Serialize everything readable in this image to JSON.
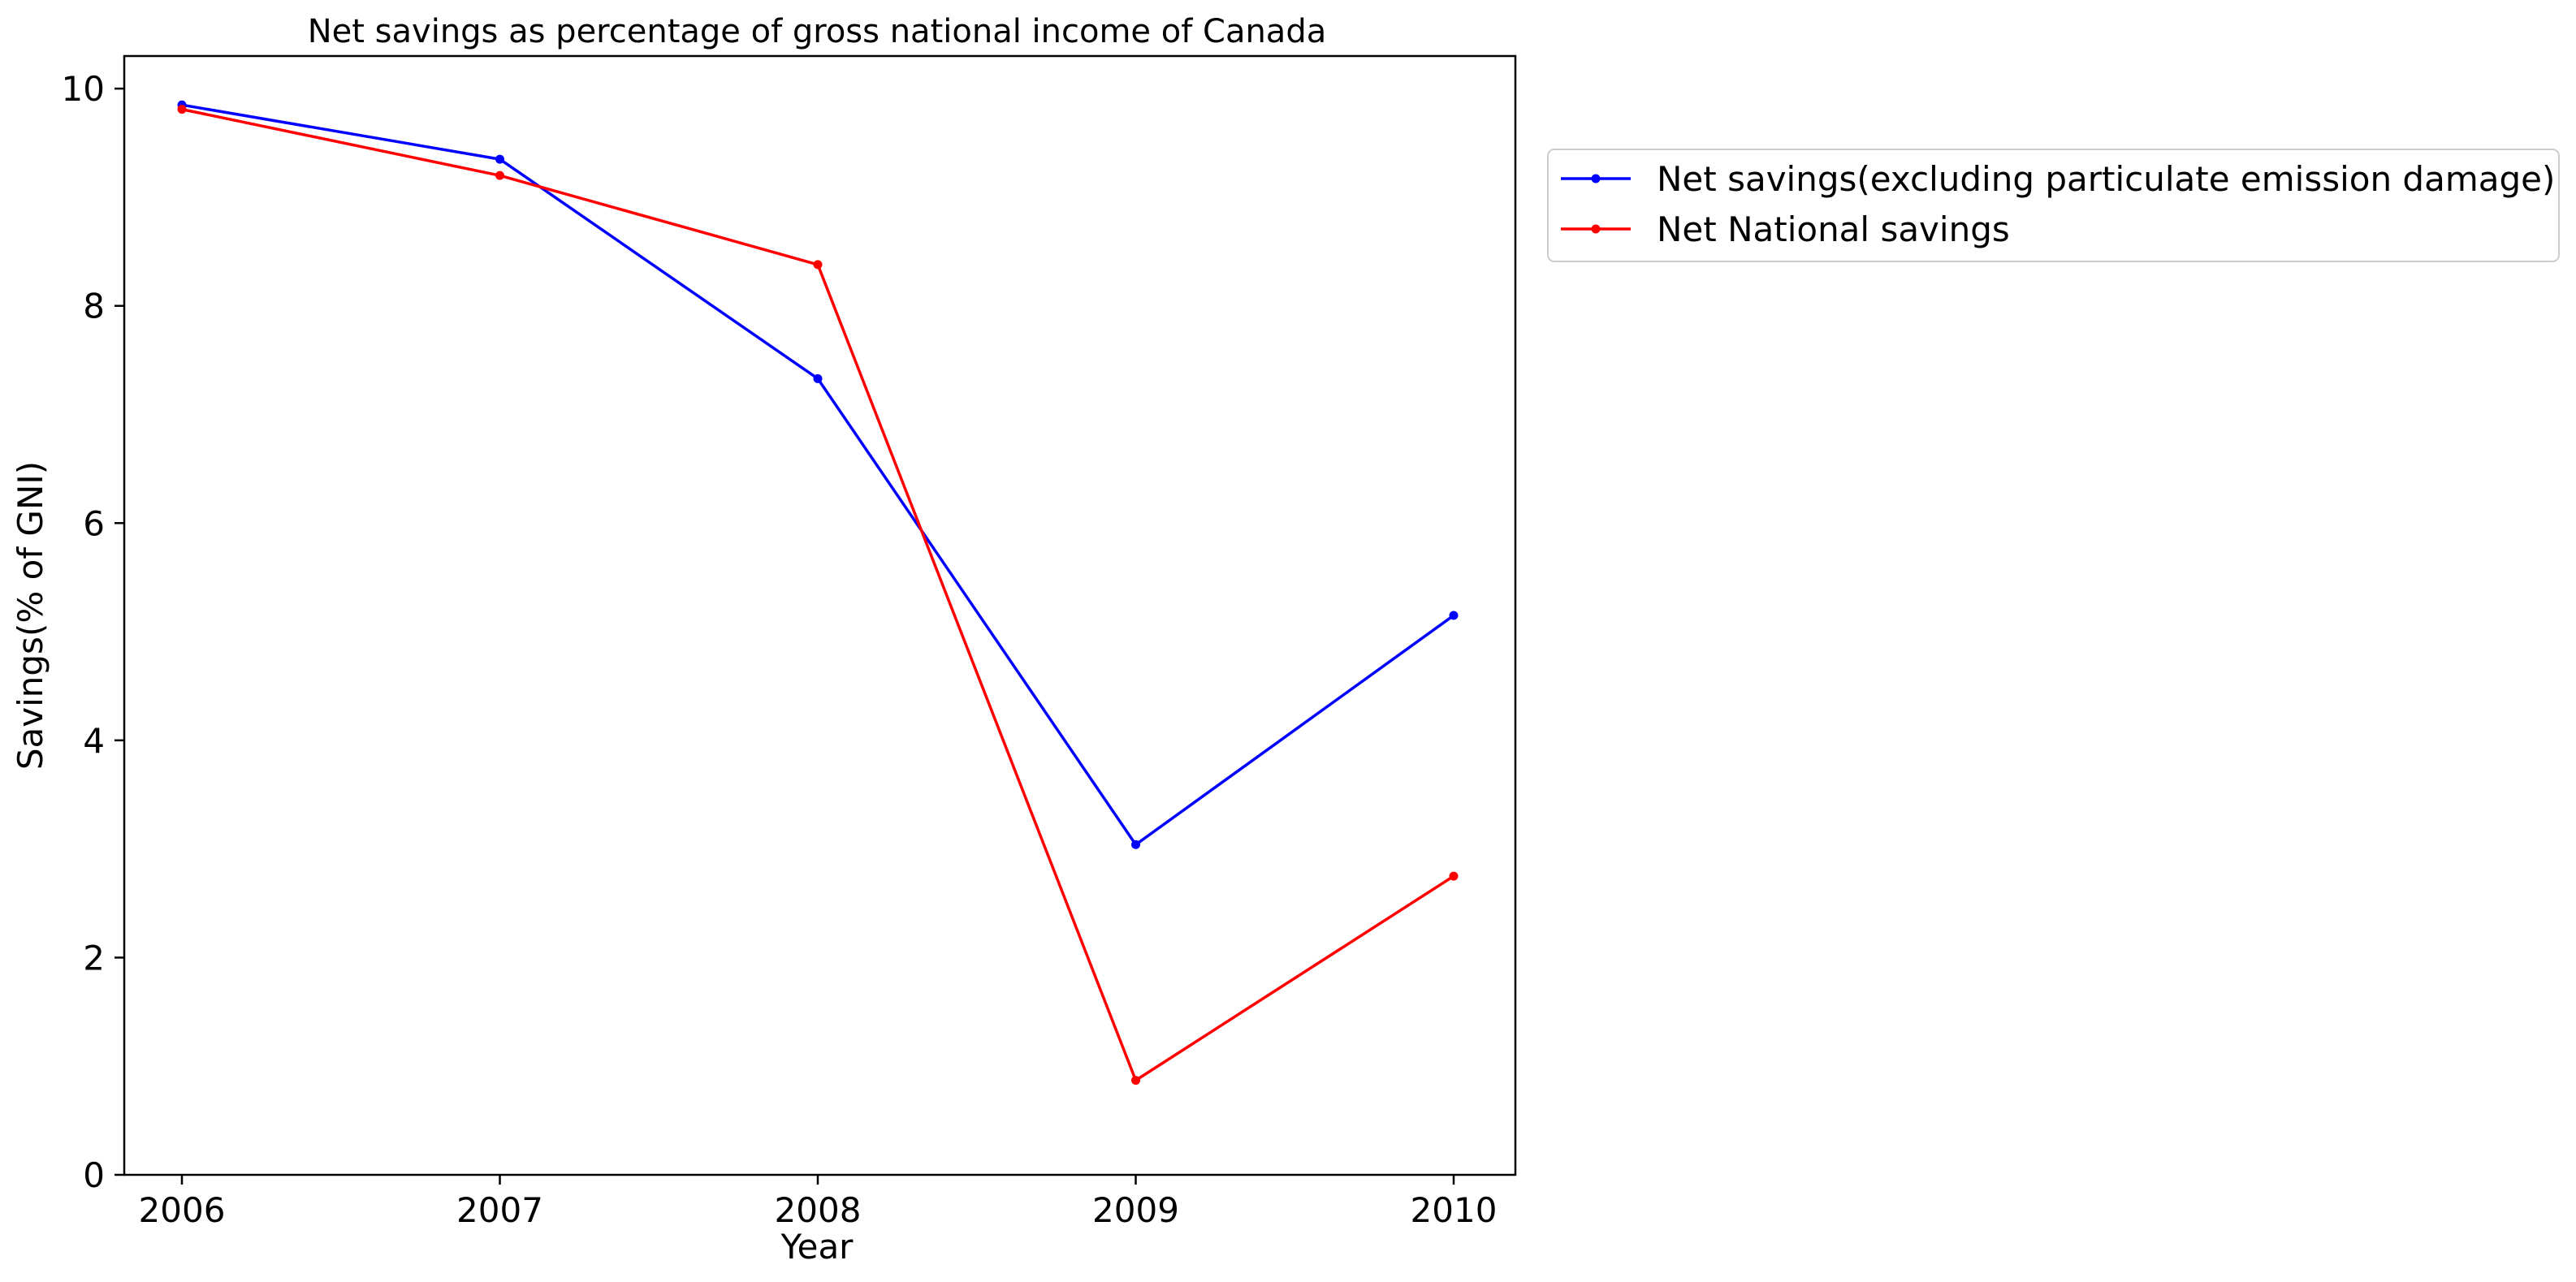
{
  "chart_data": {
    "type": "line",
    "title": "Net savings as percentage of gross national income of Canada",
    "xlabel": "Year",
    "ylabel": "Savings(% of GNI)",
    "x": [
      "2006",
      "2007",
      "2008",
      "2009",
      "2010"
    ],
    "series": [
      {
        "name": "Net savings(excluding particulate emission damage)",
        "color": "#0000ff",
        "values": [
          9.85,
          9.35,
          7.33,
          3.04,
          5.15
        ]
      },
      {
        "name": "Net National savings",
        "color": "#ff0000",
        "values": [
          9.81,
          9.2,
          8.38,
          0.87,
          2.75
        ]
      }
    ],
    "yticks": [
      "0",
      "2",
      "4",
      "6",
      "8",
      "10"
    ],
    "ylim": [
      0,
      10.3
    ],
    "grid": false,
    "legend_position": "outside-upper-right",
    "marker": "dot"
  }
}
